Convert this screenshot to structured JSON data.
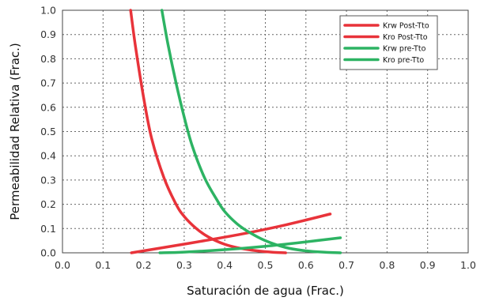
{
  "chart_data": {
    "type": "line",
    "xlabel": "Saturación de agua (Frac.)",
    "ylabel": "Permeabilidad Relativa (Frac.)",
    "xlim": [
      0.0,
      1.0
    ],
    "ylim": [
      0.0,
      1.0
    ],
    "xticks": [
      "0.0",
      "0.1",
      "0.2",
      "0.3",
      "0.4",
      "0.5",
      "0.6",
      "0.7",
      "0.8",
      "0.9",
      "1.0"
    ],
    "yticks": [
      "0.0",
      "0.1",
      "0.2",
      "0.3",
      "0.4",
      "0.5",
      "0.6",
      "0.7",
      "0.8",
      "0.9",
      "1.0"
    ],
    "grid": "dotted",
    "legend_position": "top-right",
    "series": [
      {
        "name": "Krw Post-Tto",
        "color": "#e8333a",
        "x": [
          0.17,
          0.25,
          0.35,
          0.45,
          0.55,
          0.66
        ],
        "y": [
          0.0,
          0.022,
          0.05,
          0.08,
          0.115,
          0.16
        ]
      },
      {
        "name": "Kro Post-Tto",
        "color": "#e8333a",
        "x": [
          0.168,
          0.18,
          0.2,
          0.22,
          0.25,
          0.28,
          0.3,
          0.33,
          0.36,
          0.4,
          0.44,
          0.48,
          0.52,
          0.55
        ],
        "y": [
          1.0,
          0.85,
          0.64,
          0.47,
          0.31,
          0.2,
          0.15,
          0.1,
          0.065,
          0.035,
          0.018,
          0.008,
          0.002,
          0.0
        ]
      },
      {
        "name": "Krw pre-Tto",
        "color": "#2db363",
        "x": [
          0.24,
          0.3,
          0.4,
          0.5,
          0.6,
          0.685
        ],
        "y": [
          0.0,
          0.003,
          0.013,
          0.027,
          0.045,
          0.062
        ]
      },
      {
        "name": "Kro pre-Tto",
        "color": "#2db363",
        "x": [
          0.245,
          0.26,
          0.28,
          0.3,
          0.32,
          0.35,
          0.38,
          0.4,
          0.43,
          0.46,
          0.5,
          0.55,
          0.6,
          0.65,
          0.685
        ],
        "y": [
          1.0,
          0.86,
          0.7,
          0.56,
          0.44,
          0.31,
          0.22,
          0.17,
          0.12,
          0.085,
          0.05,
          0.022,
          0.008,
          0.002,
          0.0
        ]
      }
    ]
  }
}
